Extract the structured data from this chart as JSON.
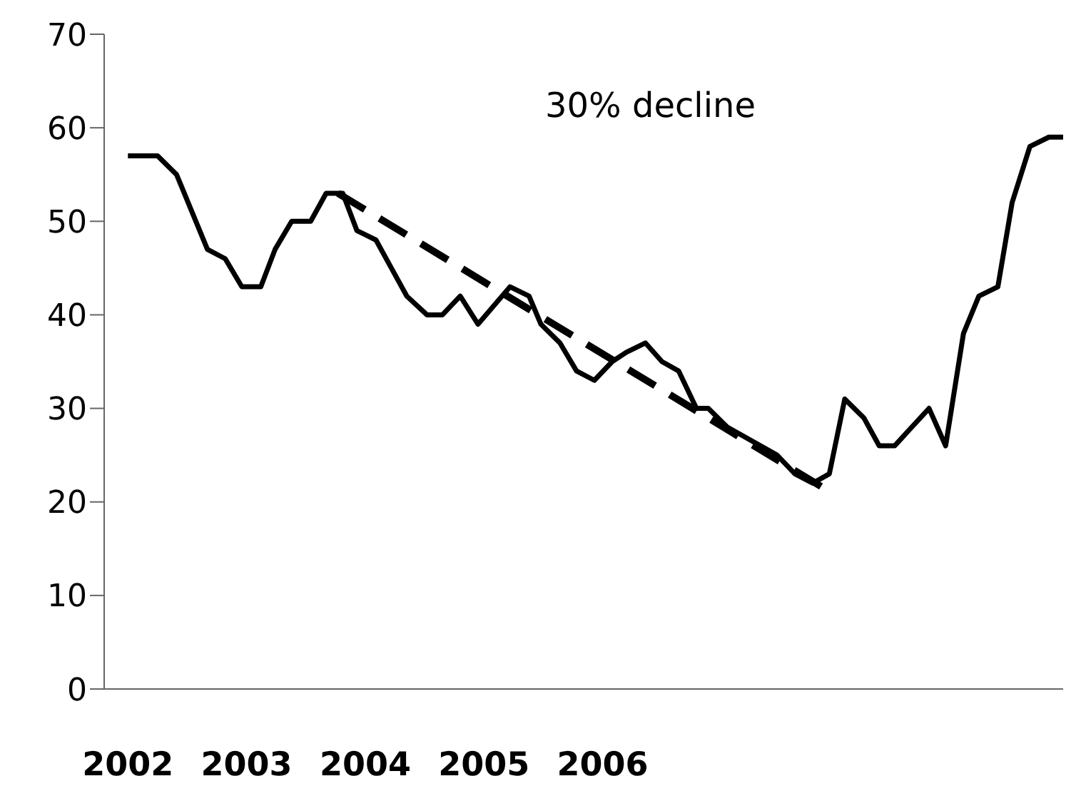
{
  "chart_data": {
    "type": "line",
    "annotations": [
      "30% decline"
    ],
    "xlim": [
      2001.8,
      2009.88
    ],
    "xticks": [
      2002,
      2003,
      2004,
      2005,
      2006
    ],
    "ylim": [
      0,
      70
    ],
    "yticks": [
      0,
      10,
      20,
      30,
      40,
      50,
      60,
      70
    ],
    "grid": false,
    "marker": "none",
    "series": [
      {
        "color": "#000000",
        "line_style": "solid",
        "x": [
          2002,
          2002.25,
          2002.41,
          2002.67,
          2002.82,
          2002.96,
          2003.12,
          2003.24,
          2003.38,
          2003.54,
          2003.67,
          2003.81,
          2003.93,
          2004.09,
          2004.22,
          2004.35,
          2004.52,
          2004.65,
          2004.8,
          2004.95,
          2005.22,
          2005.38,
          2005.48,
          2005.64,
          2005.78,
          2005.93,
          2006.08,
          2006.2,
          2006.36,
          2006.5,
          2006.64,
          2006.79,
          2006.89,
          2007.05,
          2007.47,
          2007.62,
          2007.77,
          2007.91,
          2008.04,
          2008.2,
          2008.33,
          2008.46,
          2008.75,
          2008.89,
          2009.04,
          2009.17,
          2009.33,
          2009.45,
          2009.6,
          2009.76,
          2009.88
        ],
        "values": [
          57,
          57,
          55,
          47,
          46,
          43,
          43,
          47,
          50,
          50,
          53,
          53,
          49,
          48,
          45,
          42,
          40,
          40,
          42,
          39,
          43,
          42,
          39,
          37,
          34,
          33,
          35,
          36,
          37,
          35,
          34,
          30,
          30,
          28,
          25,
          23,
          22,
          23,
          31,
          29,
          26,
          26,
          30,
          26,
          38,
          42,
          43,
          52,
          58,
          59,
          59
        ]
      },
      {
        "type": "line",
        "color": "#000000",
        "line_style": "dashed",
        "x": [
          2003.77,
          2007.86
        ],
        "values": [
          53,
          21.5
        ]
      }
    ]
  }
}
